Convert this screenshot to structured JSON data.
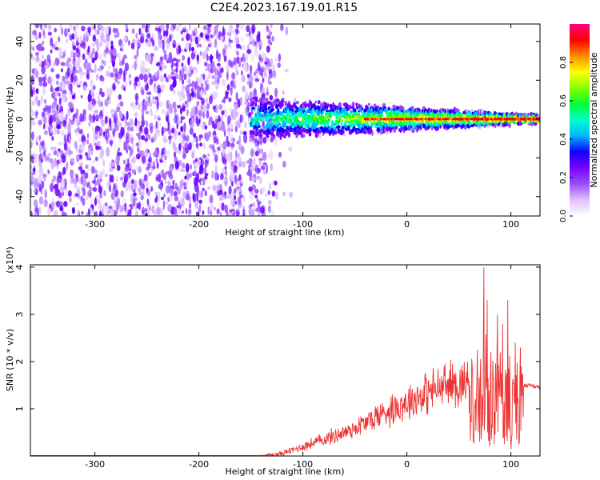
{
  "title": "C2E4.2023.167.19.01.R15",
  "chart_data": [
    {
      "type": "heatmap",
      "xlabel": "Height of straight line (km)",
      "ylabel": "Frequency (Hz)",
      "xlim": [
        -362,
        128
      ],
      "ylim": [
        -50,
        49
      ],
      "x_ticks": [
        -300,
        -200,
        -100,
        0,
        100
      ],
      "y_ticks": [
        -40,
        -20,
        0,
        20,
        40
      ],
      "colorbar": {
        "label": "Normalized spectral amplitude",
        "range": [
          0,
          1
        ],
        "ticks": [
          0.0,
          0.2,
          0.4,
          0.6,
          0.8
        ],
        "colors": [
          "#ffffff",
          "#dfc2ff",
          "#9a4dff",
          "#7b00ff",
          "#1100ff",
          "#00b4ff",
          "#00ffcc",
          "#00ff33",
          "#88ff00",
          "#ffff00",
          "#ff8c00",
          "#ff0000",
          "#ff0080"
        ]
      },
      "regions": [
        {
          "name": "noise",
          "x_range": [
            -362,
            -130
          ],
          "y_range": [
            -50,
            49
          ],
          "amplitude": 0.15
        },
        {
          "name": "signal-band",
          "x_range": [
            -150,
            128
          ],
          "center_freq": 0,
          "amplitude_peak": 0.9
        }
      ],
      "grid": false
    },
    {
      "type": "line",
      "xlabel": "Height of straight line (km)",
      "ylabel": "SNR (10 * v/v)",
      "y_multiplier": "(x10⁴)",
      "xlim": [
        -362,
        128
      ],
      "ylim": [
        0,
        4.05
      ],
      "x_ticks": [
        -300,
        -200,
        -100,
        0,
        100
      ],
      "y_ticks": [
        1,
        2,
        3,
        4
      ],
      "color": "#ee3333",
      "envelope": {
        "x": [
          -362,
          -140,
          -120,
          -100,
          -80,
          -60,
          -40,
          -20,
          0,
          20,
          40,
          60,
          70,
          75,
          80,
          90,
          100,
          108,
          112,
          128
        ],
        "y": [
          0.0,
          0.0,
          0.05,
          0.2,
          0.35,
          0.5,
          0.7,
          0.95,
          1.15,
          1.35,
          1.5,
          1.58,
          1.6,
          1.6,
          1.58,
          1.4,
          1.2,
          1.4,
          1.5,
          1.45
        ]
      },
      "peaks": [
        {
          "x": 74,
          "y": 4.0
        },
        {
          "x": 77,
          "y": 3.3
        },
        {
          "x": 81,
          "y": 2.2
        },
        {
          "x": 87,
          "y": 3.0
        },
        {
          "x": 92,
          "y": 2.8
        },
        {
          "x": 97,
          "y": 3.3
        },
        {
          "x": 104,
          "y": 2.4
        },
        {
          "x": 109,
          "y": 2.3
        }
      ],
      "grid": false
    }
  ]
}
